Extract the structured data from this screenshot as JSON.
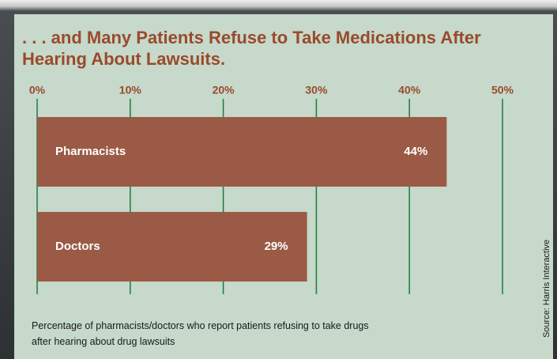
{
  "chart_data": {
    "type": "bar",
    "orientation": "horizontal",
    "title": ". . . and Many Patients Refuse to Take Medications After Hearing About Lawsuits.",
    "caption": "Percentage of pharmacists/doctors who report patients refusing to take drugs after hearing about drug lawsuits",
    "source": "Source: Harris Interactive",
    "categories": [
      "Pharmacists",
      "Doctors"
    ],
    "values": [
      44,
      29
    ],
    "value_labels": [
      "44%",
      "29%"
    ],
    "color": "#9b5a45",
    "grid_color": "#1f7a3c",
    "xlim": [
      0,
      50
    ],
    "xticks": [
      {
        "value": 0,
        "label": "0%"
      },
      {
        "value": 10,
        "label": "10%"
      },
      {
        "value": 20,
        "label": "20%"
      },
      {
        "value": 30,
        "label": "30%"
      },
      {
        "value": 40,
        "label": "40%"
      },
      {
        "value": 50,
        "label": "50%"
      }
    ],
    "grid": true
  }
}
